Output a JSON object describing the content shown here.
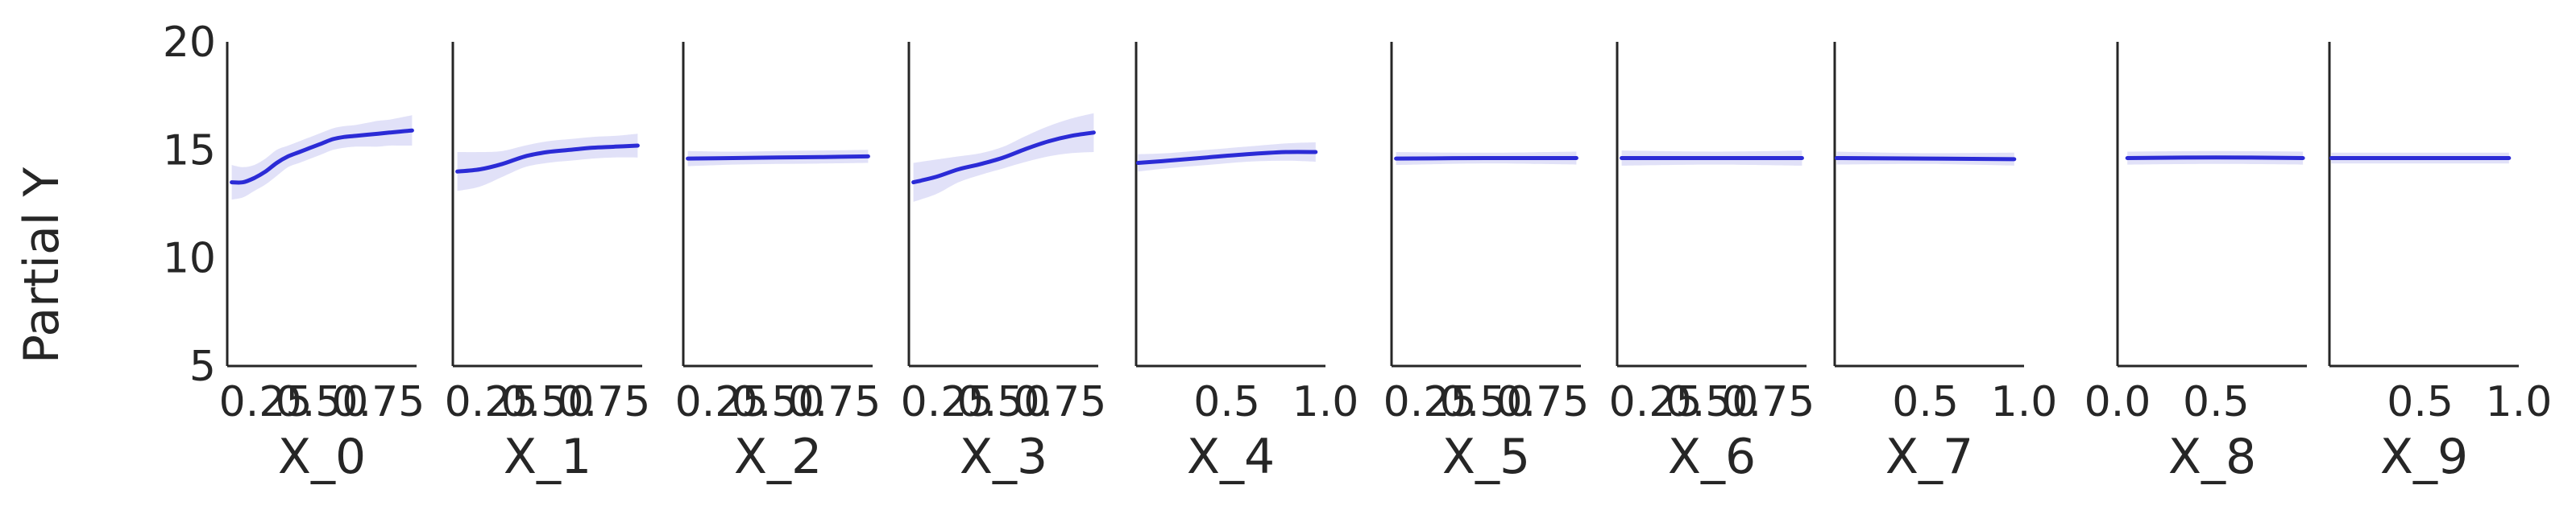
{
  "chart_data": {
    "type": "line",
    "ylabel": "Partial Y",
    "ylim": [
      5,
      20
    ],
    "yticks": [
      5,
      10,
      15,
      20
    ],
    "color": "#2b2bd6",
    "band_color": "#dcdcf7",
    "panels": [
      {
        "xlabel": "X_0",
        "xlim": [
          0.08,
          0.92
        ],
        "xticks": [
          "0.25",
          "0.50",
          "0.75"
        ],
        "x": [
          0.1,
          0.15,
          0.2,
          0.25,
          0.3,
          0.35,
          0.4,
          0.45,
          0.5,
          0.55,
          0.6,
          0.65,
          0.7,
          0.75,
          0.8,
          0.85,
          0.9
        ],
        "y": [
          13.5,
          13.5,
          13.7,
          14.0,
          14.4,
          14.7,
          14.9,
          15.1,
          15.3,
          15.5,
          15.6,
          15.65,
          15.7,
          15.75,
          15.8,
          15.85,
          15.9
        ],
        "half_band": [
          0.8,
          0.7,
          0.6,
          0.6,
          0.6,
          0.5,
          0.5,
          0.5,
          0.5,
          0.5,
          0.5,
          0.5,
          0.55,
          0.6,
          0.6,
          0.65,
          0.7
        ]
      },
      {
        "xlabel": "X_1",
        "xlim": [
          0.08,
          0.92
        ],
        "xticks": [
          "0.25",
          "0.50",
          "0.75"
        ],
        "x": [
          0.1,
          0.2,
          0.3,
          0.4,
          0.5,
          0.6,
          0.7,
          0.8,
          0.9
        ],
        "y": [
          14.0,
          14.1,
          14.35,
          14.7,
          14.9,
          15.0,
          15.1,
          15.15,
          15.2
        ],
        "half_band": [
          0.9,
          0.8,
          0.6,
          0.5,
          0.5,
          0.5,
          0.5,
          0.5,
          0.55
        ]
      },
      {
        "xlabel": "X_2",
        "xlim": [
          0.08,
          0.92
        ],
        "xticks": [
          "0.25",
          "0.50",
          "0.75"
        ],
        "x": [
          0.1,
          0.3,
          0.5,
          0.7,
          0.9
        ],
        "y": [
          14.6,
          14.62,
          14.65,
          14.67,
          14.7
        ],
        "half_band": [
          0.35,
          0.3,
          0.3,
          0.3,
          0.3
        ]
      },
      {
        "xlabel": "X_3",
        "xlim": [
          0.08,
          0.92
        ],
        "xticks": [
          "0.25",
          "0.50",
          "0.75"
        ],
        "x": [
          0.1,
          0.2,
          0.3,
          0.4,
          0.5,
          0.6,
          0.7,
          0.8,
          0.9
        ],
        "y": [
          13.5,
          13.75,
          14.1,
          14.35,
          14.65,
          15.05,
          15.4,
          15.65,
          15.8
        ],
        "half_band": [
          0.9,
          0.8,
          0.6,
          0.5,
          0.5,
          0.6,
          0.7,
          0.8,
          0.9
        ]
      },
      {
        "xlabel": "X_4",
        "xlim": [
          0.04,
          1.0
        ],
        "xticks": [
          "0.5",
          "1.0"
        ],
        "x": [
          0.05,
          0.2,
          0.4,
          0.6,
          0.8,
          0.95
        ],
        "y": [
          14.4,
          14.5,
          14.65,
          14.8,
          14.9,
          14.9
        ],
        "half_band": [
          0.4,
          0.35,
          0.35,
          0.35,
          0.4,
          0.45
        ]
      },
      {
        "xlabel": "X_5",
        "xlim": [
          0.08,
          0.92
        ],
        "xticks": [
          "0.25",
          "0.50",
          "0.75"
        ],
        "x": [
          0.1,
          0.5,
          0.9
        ],
        "y": [
          14.6,
          14.62,
          14.62
        ],
        "half_band": [
          0.3,
          0.25,
          0.3
        ]
      },
      {
        "xlabel": "X_6",
        "xlim": [
          0.08,
          0.92
        ],
        "xticks": [
          "0.25",
          "0.50",
          "0.75"
        ],
        "x": [
          0.1,
          0.5,
          0.9
        ],
        "y": [
          14.62,
          14.62,
          14.62
        ],
        "half_band": [
          0.35,
          0.3,
          0.35
        ]
      },
      {
        "xlabel": "X_7",
        "xlim": [
          0.04,
          1.0
        ],
        "xticks": [
          "0.5",
          "1.0"
        ],
        "x": [
          0.05,
          0.5,
          0.95
        ],
        "y": [
          14.62,
          14.6,
          14.57
        ],
        "half_band": [
          0.3,
          0.25,
          0.3
        ]
      },
      {
        "xlabel": "X_8",
        "xlim": [
          0.0,
          0.96
        ],
        "xticks": [
          "0.0",
          "0.5"
        ],
        "x": [
          0.05,
          0.5,
          0.94
        ],
        "y": [
          14.62,
          14.65,
          14.62
        ],
        "half_band": [
          0.3,
          0.3,
          0.3
        ]
      },
      {
        "xlabel": "X_9",
        "xlim": [
          0.04,
          1.0
        ],
        "xticks": [
          "0.5",
          "1.0"
        ],
        "x": [
          0.05,
          0.5,
          0.95
        ],
        "y": [
          14.62,
          14.62,
          14.62
        ],
        "half_band": [
          0.25,
          0.25,
          0.25
        ]
      }
    ]
  }
}
